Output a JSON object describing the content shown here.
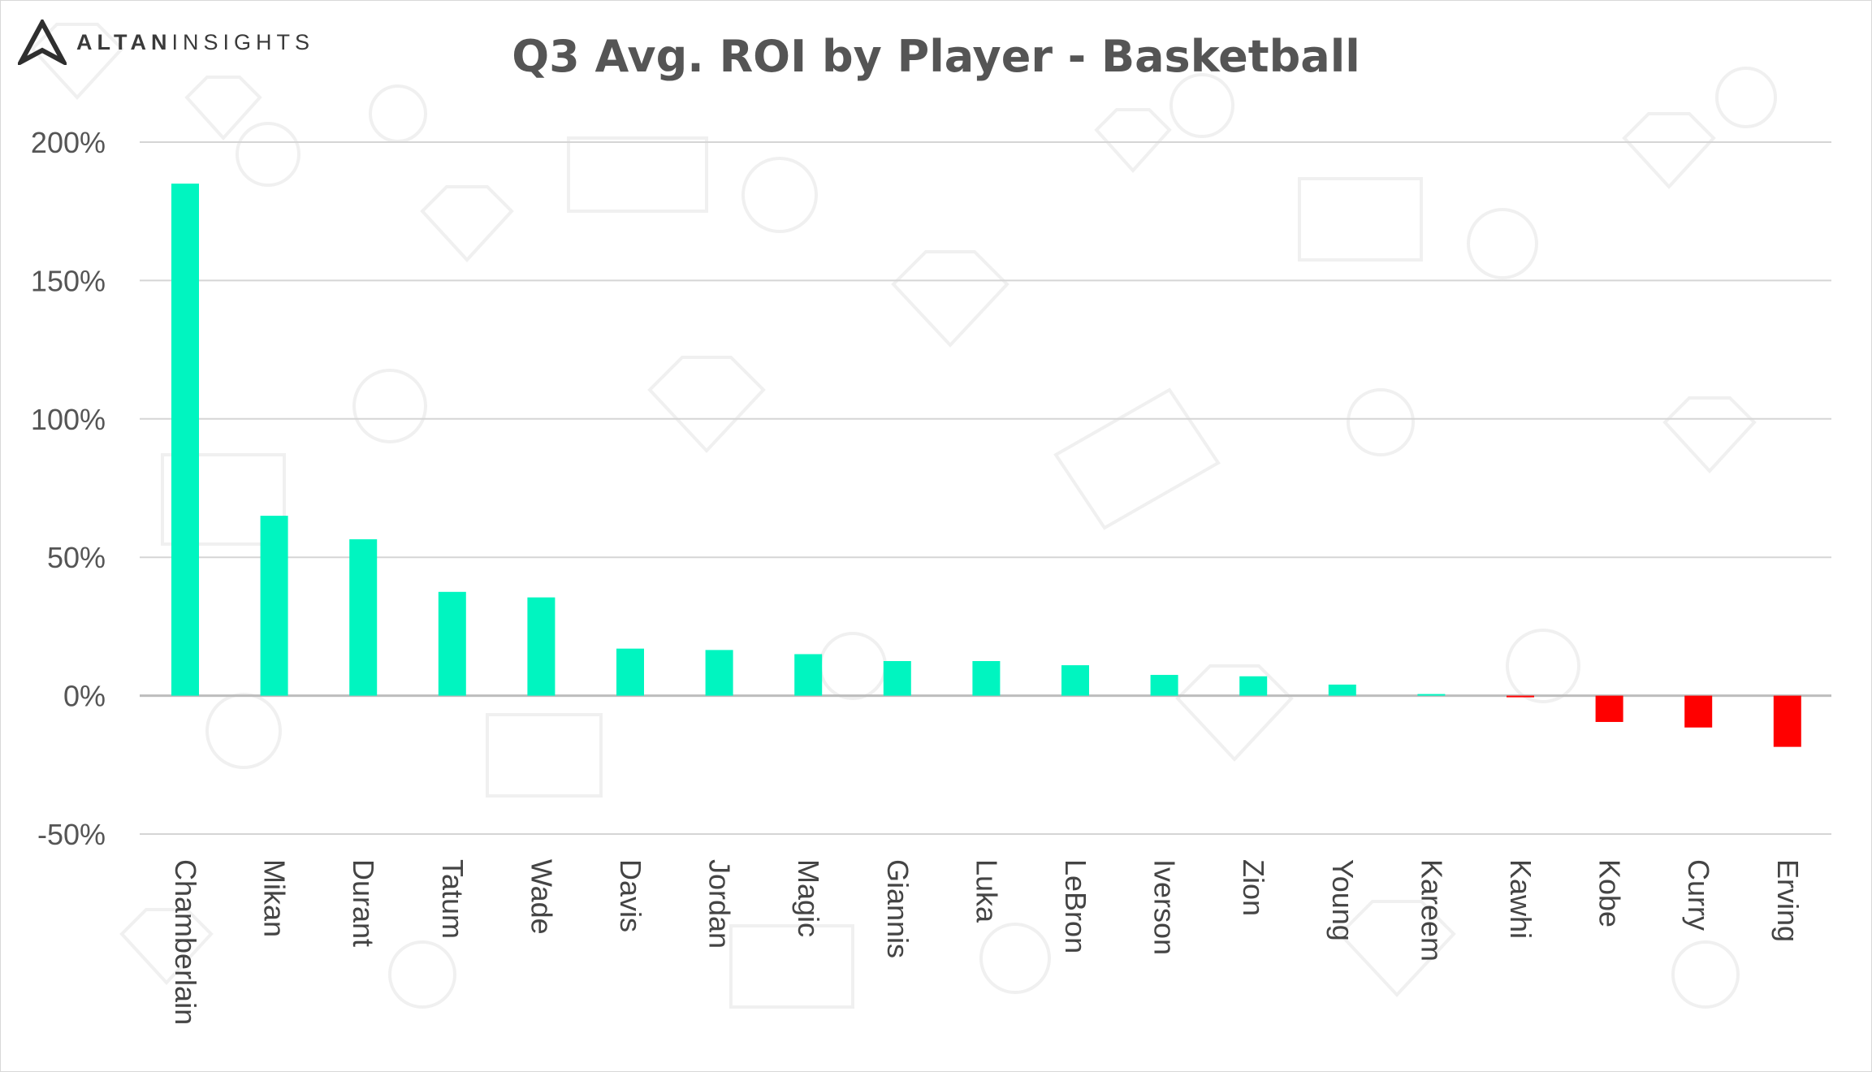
{
  "brand": {
    "name_part1": "ALTAN",
    "name_part2": "INSIGHTS"
  },
  "chart_data": {
    "type": "bar",
    "title": "Q3 Avg. ROI by Player - Basketball",
    "xlabel": "",
    "ylabel": "",
    "categories": [
      "Chamberlain",
      "Mikan",
      "Durant",
      "Tatum",
      "Wade",
      "Davis",
      "Jordan",
      "Magic",
      "Giannis",
      "Luka",
      "LeBron",
      "Iverson",
      "Zion",
      "Young",
      "Kareem",
      "Kawhi",
      "Kobe",
      "Curry",
      "Erving"
    ],
    "values": [
      185,
      65,
      56.5,
      37.5,
      35.5,
      17,
      16.5,
      15,
      12.5,
      12.5,
      11,
      7.5,
      7,
      4,
      0.5,
      -0.5,
      -9.5,
      -11.5,
      -18.5
    ],
    "ylim": [
      -50,
      200
    ],
    "yticks": [
      200,
      150,
      100,
      50,
      0,
      -50
    ],
    "ytick_labels": [
      "200%",
      "150%",
      "100%",
      "50%",
      "0%",
      "-50%"
    ],
    "grid": true,
    "legend": "none",
    "colors": {
      "positive": "#00f5c0",
      "negative": "#ff0000",
      "grid": "#d5d5d5",
      "zero_line": "#bdbdbd"
    }
  }
}
